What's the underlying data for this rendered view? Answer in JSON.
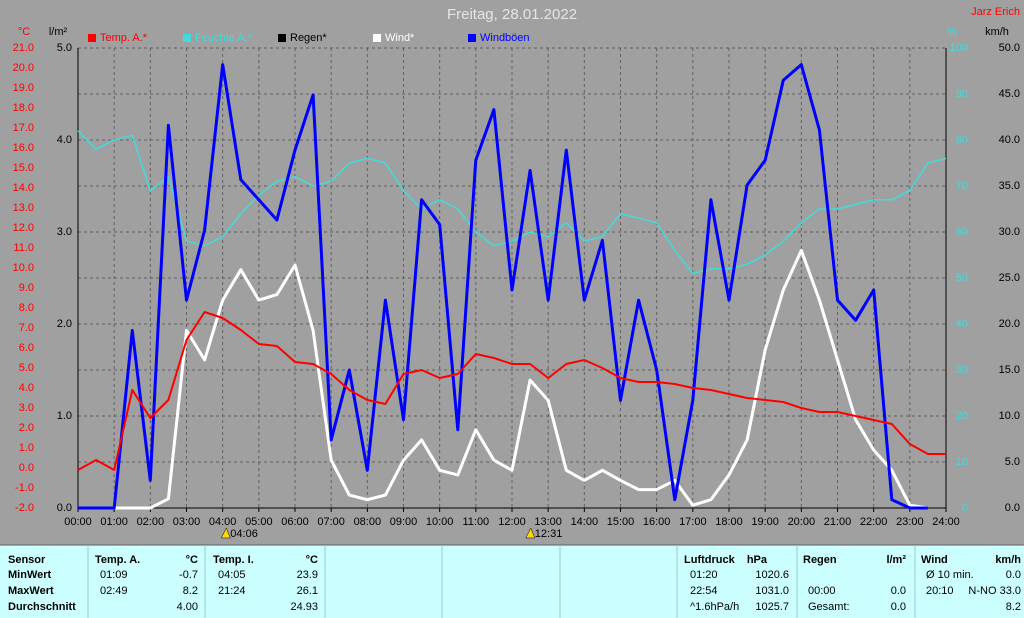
{
  "chart_data": {
    "type": "line",
    "title": "Freitag, 28.01.2022",
    "author": "Jarz Erich",
    "xlim": [
      0,
      24
    ],
    "xticks": [
      {
        "value": 0,
        "label": "00:00"
      },
      {
        "value": 1,
        "label": "01:00"
      },
      {
        "value": 2,
        "label": "02:00"
      },
      {
        "value": 3,
        "label": "03:00"
      },
      {
        "value": 4,
        "label": "04:00"
      },
      {
        "value": 5,
        "label": "05:00"
      },
      {
        "value": 6,
        "label": "06:00"
      },
      {
        "value": 7,
        "label": "07:00"
      },
      {
        "value": 8,
        "label": "08:00"
      },
      {
        "value": 9,
        "label": "09:00"
      },
      {
        "value": 10,
        "label": "10:00"
      },
      {
        "value": 11,
        "label": "11:00"
      },
      {
        "value": 12,
        "label": "12:00"
      },
      {
        "value": 13,
        "label": "13:00"
      },
      {
        "value": 14,
        "label": "14:00"
      },
      {
        "value": 15,
        "label": "15:00"
      },
      {
        "value": 16,
        "label": "16:00"
      },
      {
        "value": 17,
        "label": "17:00"
      },
      {
        "value": 18,
        "label": "18:00"
      },
      {
        "value": 19,
        "label": "19:00"
      },
      {
        "value": 20,
        "label": "20:00"
      },
      {
        "value": 21,
        "label": "21:00"
      },
      {
        "value": 22,
        "label": "22:00"
      },
      {
        "value": 23,
        "label": "23:00"
      },
      {
        "value": 24,
        "label": "24:00"
      }
    ],
    "y_label": "°C",
    "ylim": [
      -2,
      21
    ],
    "yticks": [
      {
        "value": -2,
        "label": "-2.0"
      },
      {
        "value": -1,
        "label": "-1.0"
      },
      {
        "value": 0,
        "label": "0.0"
      },
      {
        "value": 1,
        "label": "1.0"
      },
      {
        "value": 2,
        "label": "2.0"
      },
      {
        "value": 3,
        "label": "3.0"
      },
      {
        "value": 4,
        "label": "4.0"
      },
      {
        "value": 5,
        "label": "5.0"
      },
      {
        "value": 6,
        "label": "6.0"
      },
      {
        "value": 7,
        "label": "7.0"
      },
      {
        "value": 8,
        "label": "8.0"
      },
      {
        "value": 9,
        "label": "9.0"
      },
      {
        "value": 10,
        "label": "10.0"
      },
      {
        "value": 11,
        "label": "11.0"
      },
      {
        "value": 12,
        "label": "12.0"
      },
      {
        "value": 13,
        "label": "13.0"
      },
      {
        "value": 14,
        "label": "14.0"
      },
      {
        "value": 15,
        "label": "15.0"
      },
      {
        "value": 16,
        "label": "16.0"
      },
      {
        "value": 17,
        "label": "17.0"
      },
      {
        "value": 18,
        "label": "18.0"
      },
      {
        "value": 19,
        "label": "19.0"
      },
      {
        "value": 20,
        "label": "20.0"
      },
      {
        "value": 21,
        "label": "21.0"
      }
    ],
    "y2_label": "l/m²",
    "y2lim": [
      0,
      5
    ],
    "y2ticks": [
      {
        "value": 0,
        "label": "0.0"
      },
      {
        "value": 1,
        "label": "1.0"
      },
      {
        "value": 2,
        "label": "2.0"
      },
      {
        "value": 3,
        "label": "3.0"
      },
      {
        "value": 4,
        "label": "4.0"
      },
      {
        "value": 5,
        "label": "5.0"
      }
    ],
    "y3_label": "%",
    "y3lim": [
      0,
      100
    ],
    "y3ticks": [
      0,
      10,
      20,
      30,
      40,
      50,
      60,
      70,
      80,
      90,
      100
    ],
    "y4_label": "km/h",
    "y4lim": [
      0,
      50
    ],
    "y4ticks": [
      {
        "value": 0,
        "label": "0.0"
      },
      {
        "value": 5,
        "label": "5.0"
      },
      {
        "value": 10,
        "label": "10.0"
      },
      {
        "value": 15,
        "label": "15.0"
      },
      {
        "value": 20,
        "label": "20.0"
      },
      {
        "value": 25,
        "label": "25.0"
      },
      {
        "value": 30,
        "label": "30.0"
      },
      {
        "value": 35,
        "label": "35.0"
      },
      {
        "value": 40,
        "label": "40.0"
      },
      {
        "value": 45,
        "label": "45.0"
      },
      {
        "value": 50,
        "label": "50.0"
      }
    ],
    "grid": true,
    "annotations": [
      {
        "x": 4.1,
        "label": "04:06"
      },
      {
        "x": 12.52,
        "label": "12:31"
      }
    ],
    "x": [
      0,
      0.5,
      1,
      1.5,
      2,
      2.5,
      3,
      3.5,
      4,
      4.5,
      5,
      5.5,
      6,
      6.5,
      7,
      7.5,
      8,
      8.5,
      9,
      9.5,
      10,
      10.5,
      11,
      11.5,
      12,
      12.5,
      13,
      13.5,
      14,
      14.5,
      15,
      15.5,
      16,
      16.5,
      17,
      17.5,
      18,
      18.5,
      19,
      19.5,
      20,
      20.5,
      21,
      21.5,
      22,
      22.5,
      23,
      23.5,
      24
    ],
    "series": [
      {
        "name": "Temp. A.*",
        "color": "#ff0000",
        "axis": "y",
        "width": 2,
        "values": [
          -0.1,
          0.4,
          -0.1,
          3.9,
          2.5,
          3.4,
          6.4,
          7.8,
          7.5,
          6.9,
          6.2,
          6.1,
          5.3,
          5.2,
          4.7,
          3.9,
          3.4,
          3.2,
          4.7,
          4.9,
          4.5,
          4.7,
          5.7,
          5.5,
          5.2,
          5.2,
          4.5,
          5.2,
          5.4,
          5.0,
          4.5,
          4.3,
          4.3,
          4.2,
          4.0,
          3.9,
          3.7,
          3.5,
          3.4,
          3.3,
          3.0,
          2.8,
          2.8,
          2.6,
          2.4,
          2.2,
          1.2,
          0.7,
          0.7
        ]
      },
      {
        "name": "Feuchte A.*",
        "color": "#40dcdc",
        "axis": "y3",
        "width": 1.5,
        "values": [
          82,
          78,
          80,
          81,
          69,
          72,
          58,
          57,
          59,
          64,
          68,
          71,
          72,
          70,
          71,
          75,
          76,
          75,
          69,
          65,
          67,
          65,
          60,
          57,
          58,
          60,
          59,
          62,
          58,
          59,
          64,
          63,
          62,
          56,
          51,
          52,
          52,
          53,
          55,
          58,
          62,
          65,
          65,
          66,
          67,
          67,
          69,
          75,
          76
        ]
      },
      {
        "name": "Regen*",
        "color": "#000000",
        "axis": "y2"
      },
      {
        "name": "Wind*",
        "color": "#ffffff",
        "axis": "y4",
        "width": 3,
        "values": [
          0,
          0,
          0,
          0,
          0,
          1,
          19.3,
          16.1,
          22.6,
          25.9,
          22.6,
          23.2,
          26.4,
          19.3,
          5.2,
          1.4,
          0.9,
          1.4,
          5.2,
          7.4,
          4.1,
          3.6,
          8.5,
          5.2,
          4.1,
          13.9,
          11.7,
          4.1,
          3.0,
          4.1,
          3.0,
          2.0,
          2.0,
          3.0,
          0.3,
          0.9,
          3.6,
          7.4,
          17.2,
          23.7,
          28.0,
          22.6,
          16.1,
          9.6,
          6.3,
          4.1,
          0.3,
          0,
          null
        ]
      },
      {
        "name": "Windböen",
        "color": "#0000ff",
        "axis": "y4",
        "width": 3,
        "values": [
          0,
          0,
          0,
          19.3,
          3.0,
          41.6,
          22.6,
          30.2,
          48.2,
          35.7,
          33.5,
          31.3,
          38.9,
          44.9,
          7.4,
          15.0,
          4.1,
          22.6,
          9.6,
          33.5,
          30.8,
          8.5,
          37.8,
          43.3,
          23.7,
          36.7,
          22.6,
          38.9,
          22.6,
          29.1,
          11.7,
          22.6,
          15.0,
          0.9,
          11.7,
          33.5,
          22.6,
          35.1,
          37.8,
          46.5,
          48.2,
          41.1,
          22.6,
          20.4,
          23.7,
          0.9,
          0,
          0,
          null
        ]
      }
    ]
  },
  "table": {
    "corner": "Sensor",
    "row_labels": [
      "MinWert",
      "MaxWert",
      "Durchschnitt"
    ],
    "groups": [
      {
        "name": "Temp. A.",
        "unit": "°C",
        "rows": [
          [
            "01:09",
            "-0.7"
          ],
          [
            "02:49",
            "8.2"
          ],
          [
            "4.00"
          ]
        ]
      },
      {
        "name": "Temp. I.",
        "unit": "°C",
        "rows": [
          [
            "04:05",
            "23.9"
          ],
          [
            "21:24",
            "26.1"
          ],
          [
            "24.93"
          ]
        ]
      },
      {
        "name": "Luftdruck",
        "unit": "hPa",
        "rows": [
          [
            "01:20",
            "1020.6"
          ],
          [
            "22:54",
            "1031.0"
          ],
          [
            "^1.6hPa/h",
            "1025.7"
          ]
        ]
      },
      {
        "name": "Regen",
        "unit": "l/m²",
        "rows": [
          [],
          [
            "00:00",
            "0.0"
          ],
          [
            "Gesamt:",
            "0.0"
          ]
        ]
      },
      {
        "name": "Wind",
        "unit": "km/h",
        "rows": [
          [
            "Ø 10 min.",
            "0.0"
          ],
          [
            "20:10",
            "N-NO 33.0"
          ],
          [
            "8.2"
          ]
        ]
      }
    ]
  }
}
